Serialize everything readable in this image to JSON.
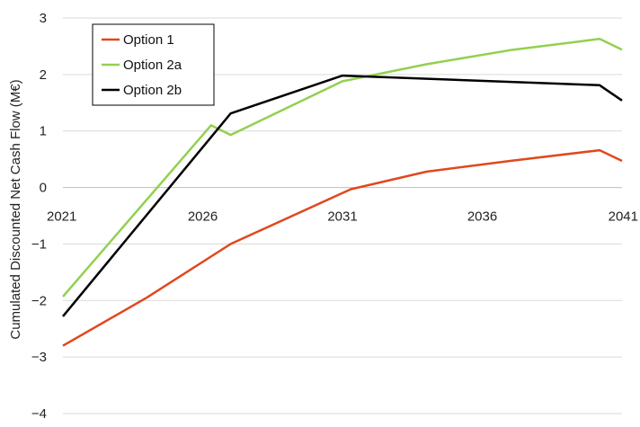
{
  "chart_data": {
    "type": "line",
    "title": "",
    "xlabel": "",
    "ylabel": "Cumulated Discounted Net Cash Flow (M€)",
    "xlim": [
      2021,
      2041
    ],
    "ylim": [
      -4,
      3
    ],
    "x_ticks": [
      "2021",
      "2026",
      "2031",
      "2036",
      "2041"
    ],
    "y_ticks": [
      "−4",
      "−3",
      "−2",
      "−1",
      "0",
      "1",
      "2",
      "3"
    ],
    "grid": true,
    "legend_position": "top-left",
    "series": [
      {
        "name": "Option 1",
        "color": "#e0481f",
        "x": [
          2021,
          2024,
          2027,
          2031.3,
          2034,
          2037,
          2040.2,
          2041
        ],
        "y": [
          -2.8,
          -1.95,
          -1.0,
          -0.03,
          0.28,
          0.47,
          0.66,
          0.47
        ]
      },
      {
        "name": "Option 2a",
        "color": "#92d050",
        "x": [
          2021,
          2026.3,
          2027,
          2031,
          2034,
          2037,
          2040.2,
          2041
        ],
        "y": [
          -1.93,
          1.1,
          0.93,
          1.88,
          2.18,
          2.43,
          2.63,
          2.44
        ]
      },
      {
        "name": "Option 2b",
        "color": "#000000",
        "x": [
          2021,
          2027,
          2031,
          2040.2,
          2041
        ],
        "y": [
          -2.28,
          1.31,
          1.98,
          1.81,
          1.54
        ]
      }
    ]
  }
}
